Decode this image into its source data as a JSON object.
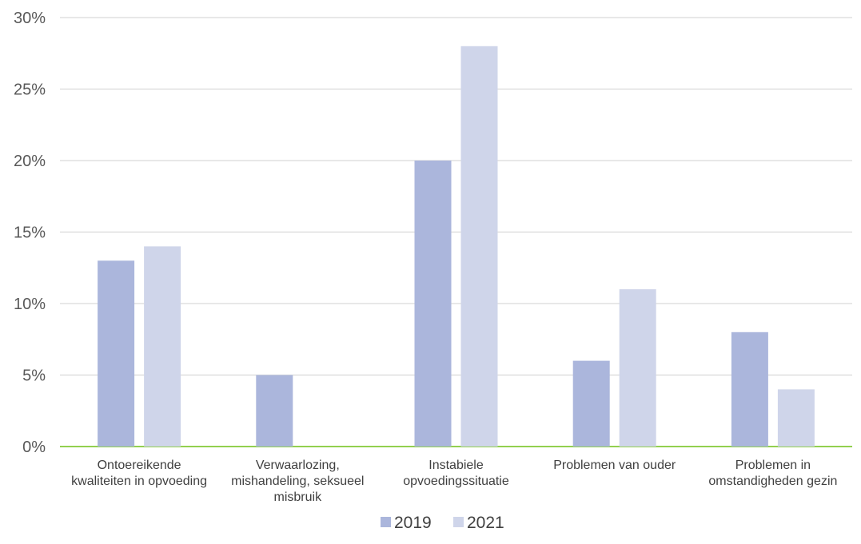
{
  "chart_data": {
    "type": "bar",
    "title": "",
    "xlabel": "",
    "ylabel": "",
    "categories": [
      [
        "Ontoereikende",
        "kwaliteiten in opvoeding"
      ],
      [
        "Verwaarlozing,",
        "mishandeling, seksueel",
        "misbruik"
      ],
      [
        "Instabiele",
        "opvoedingssituatie"
      ],
      [
        "Problemen van ouder"
      ],
      [
        "Problemen in",
        "omstandigheden gezin"
      ]
    ],
    "series": [
      {
        "name": "2019",
        "color": "#abb6dc",
        "values": [
          13,
          5,
          20,
          6,
          8
        ]
      },
      {
        "name": "2021",
        "color": "#cfd5ea",
        "values": [
          14,
          0,
          28,
          11,
          4
        ]
      }
    ],
    "ylim": [
      0,
      30
    ],
    "yticks": [
      0,
      5,
      10,
      15,
      20,
      25,
      30
    ],
    "ytick_labels": [
      "0%",
      "5%",
      "10%",
      "15%",
      "20%",
      "25%",
      "30%"
    ],
    "grid": true,
    "baseline_color": "#92d050",
    "legend": "bottom-center"
  }
}
